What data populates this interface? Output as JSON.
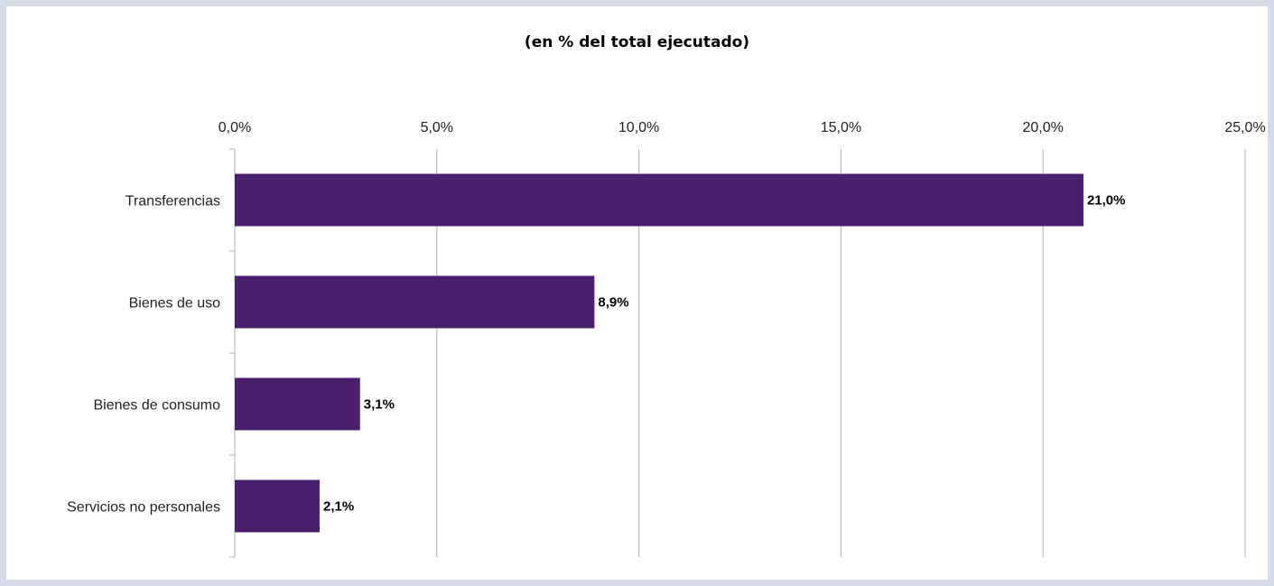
{
  "chart_data": {
    "type": "bar",
    "orientation": "horizontal",
    "subtitle": "(en % del total ejecutado)",
    "categories": [
      "Transferencias",
      "Bienes de uso",
      "Bienes de consumo",
      "Servicios no personales"
    ],
    "values": [
      21.0,
      8.9,
      3.1,
      2.1
    ],
    "data_labels": [
      "21,0%",
      "8,9%",
      "3,1%",
      "2,1%"
    ],
    "x_ticks": [
      0,
      5,
      10,
      15,
      20,
      25
    ],
    "x_tick_labels": [
      "0,0%",
      "5,0%",
      "10,0%",
      "15,0%",
      "20,0%",
      "25,0%"
    ],
    "xlim": [
      0,
      25
    ],
    "x_axis_position": "top",
    "grid": true,
    "legend": "none",
    "bar_color": "#4a1f6e",
    "grid_color": "#b3b3b3"
  }
}
